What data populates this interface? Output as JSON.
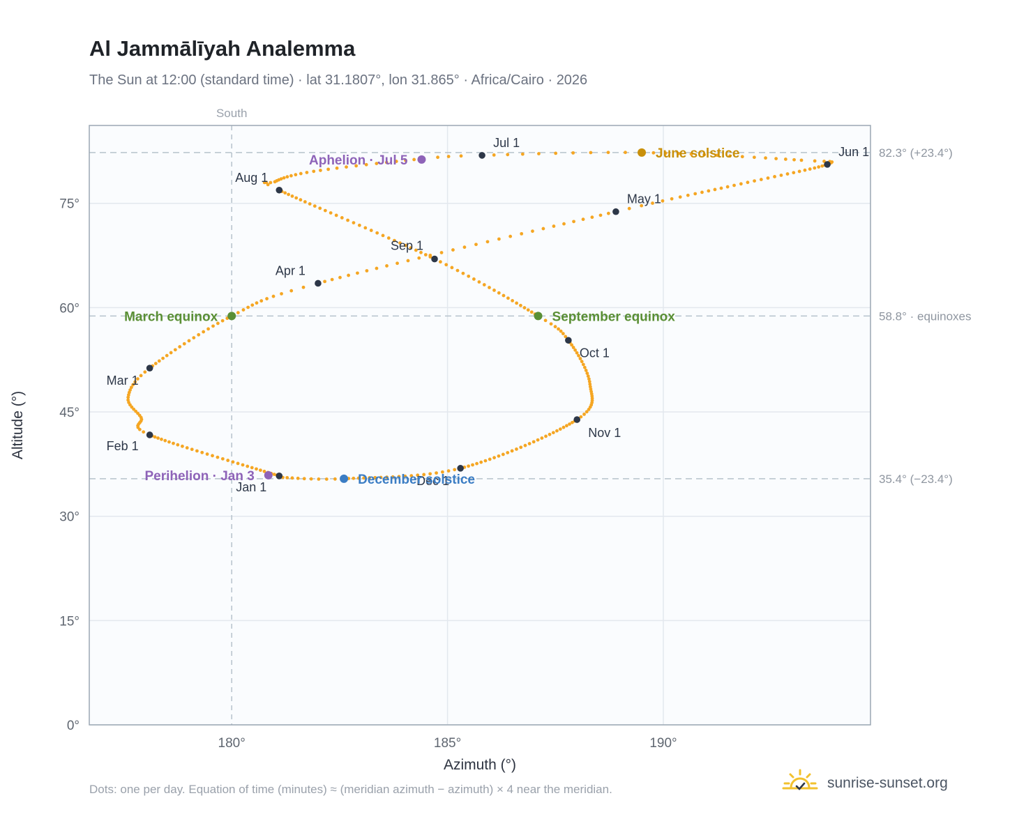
{
  "title": "Al Jammālīyah Analemma",
  "subtitle": "The Sun at 12:00 (standard time) · lat 31.1807°, lon 31.865° · Africa/Cairo · 2026",
  "footnote": "Dots: one per day. Equation of time (minutes) ≈ (meridian azimuth − azimuth) × 4 near the meridian.",
  "brand": {
    "name": "sunrise-sunset.org",
    "icon": "sun-logo-icon"
  },
  "colors": {
    "curve": "#f5a623",
    "month_marker": "#2d3748",
    "equinox": "#5a8f35",
    "june_solstice": "#c9900a",
    "december_solstice": "#3b7dc4",
    "perihelion": "#8e63b8",
    "aphelion": "#8e63b8",
    "plot_bg": "#fafcfe",
    "grid": "#e3e8ee",
    "frame": "#9ba7b4"
  },
  "chart_data": {
    "type": "scatter",
    "xlabel": "Azimuth (°)",
    "ylabel": "Altitude (°)",
    "xlim": [
      176.7,
      194.8
    ],
    "ylim": [
      0,
      86.2
    ],
    "x_ticks": [
      180,
      185,
      190
    ],
    "x_tick_labels": [
      "180°",
      "185°",
      "190°"
    ],
    "y_ticks": [
      0,
      15,
      30,
      45,
      60,
      75
    ],
    "y_tick_labels": [
      "0°",
      "15°",
      "30°",
      "45°",
      "60°",
      "75°"
    ],
    "grid": true,
    "meridian": {
      "azimuth": 180,
      "label": "South"
    },
    "reference_lines": [
      {
        "altitude": 82.3,
        "label": "82.3° (+23.4°)"
      },
      {
        "altitude": 58.8,
        "label": "58.8° · equinoxes"
      },
      {
        "altitude": 35.4,
        "label": "35.4° (−23.4°)"
      }
    ],
    "analemma_keypoints": [
      {
        "day": 1,
        "az": 181.1,
        "alt": 35.8
      },
      {
        "day": 32,
        "az": 178.1,
        "alt": 41.7
      },
      {
        "day": 41,
        "az": 177.9,
        "alt": 44.2
      },
      {
        "day": 50,
        "az": 177.6,
        "alt": 47.1
      },
      {
        "day": 60,
        "az": 178.1,
        "alt": 51.3
      },
      {
        "day": 79,
        "az": 180.0,
        "alt": 58.8
      },
      {
        "day": 91,
        "az": 182.0,
        "alt": 63.5
      },
      {
        "day": 121,
        "az": 188.9,
        "alt": 73.8
      },
      {
        "day": 136,
        "az": 191.8,
        "alt": 77.8
      },
      {
        "day": 152,
        "az": 193.8,
        "alt": 80.6
      },
      {
        "day": 158,
        "az": 193.2,
        "alt": 81.2
      },
      {
        "day": 172,
        "az": 189.5,
        "alt": 82.3
      },
      {
        "day": 182,
        "az": 185.8,
        "alt": 81.9
      },
      {
        "day": 186,
        "az": 184.4,
        "alt": 81.4
      },
      {
        "day": 198,
        "az": 181.9,
        "alt": 79.6
      },
      {
        "day": 208,
        "az": 181.0,
        "alt": 78.1
      },
      {
        "day": 213,
        "az": 181.1,
        "alt": 76.9
      },
      {
        "day": 244,
        "az": 184.7,
        "alt": 67.0
      },
      {
        "day": 266,
        "az": 187.1,
        "alt": 58.8
      },
      {
        "day": 274,
        "az": 187.8,
        "alt": 55.3
      },
      {
        "day": 290,
        "az": 188.3,
        "alt": 49.0
      },
      {
        "day": 305,
        "az": 188.0,
        "alt": 43.9
      },
      {
        "day": 335,
        "az": 185.3,
        "alt": 36.9
      },
      {
        "day": 355,
        "az": 182.6,
        "alt": 35.4
      },
      {
        "day": 365,
        "az": 181.1,
        "alt": 35.6
      }
    ],
    "month_markers": [
      {
        "label": "Jan 1",
        "az": 181.1,
        "alt": 35.8,
        "anchor": "end",
        "dx": -18,
        "dy": 22
      },
      {
        "label": "Feb 1",
        "az": 178.1,
        "alt": 41.7,
        "anchor": "end",
        "dx": -16,
        "dy": 22
      },
      {
        "label": "Mar 1",
        "az": 178.1,
        "alt": 51.3,
        "anchor": "end",
        "dx": -16,
        "dy": 24
      },
      {
        "label": "Apr 1",
        "az": 182.0,
        "alt": 63.5,
        "anchor": "end",
        "dx": -18,
        "dy": -12
      },
      {
        "label": "May 1",
        "az": 188.9,
        "alt": 73.8,
        "anchor": "start",
        "dx": 16,
        "dy": -12
      },
      {
        "label": "Jun 1",
        "az": 193.8,
        "alt": 80.6,
        "anchor": "start",
        "dx": 16,
        "dy": -12
      },
      {
        "label": "Jul 1",
        "az": 185.8,
        "alt": 81.9,
        "anchor": "start",
        "dx": 16,
        "dy": -12
      },
      {
        "label": "Aug 1",
        "az": 181.1,
        "alt": 76.9,
        "anchor": "end",
        "dx": -16,
        "dy": -12
      },
      {
        "label": "Sep 1",
        "az": 184.7,
        "alt": 67.0,
        "anchor": "end",
        "dx": -16,
        "dy": -13
      },
      {
        "label": "Oct 1",
        "az": 187.8,
        "alt": 55.3,
        "anchor": "start",
        "dx": 16,
        "dy": 24
      },
      {
        "label": "Nov 1",
        "az": 188.0,
        "alt": 43.9,
        "anchor": "start",
        "dx": 16,
        "dy": 25
      },
      {
        "label": "Dec 1",
        "az": 185.3,
        "alt": 36.9,
        "anchor": "end",
        "dx": -16,
        "dy": 24
      }
    ],
    "events": [
      {
        "label": "March equinox",
        "az": 180.0,
        "alt": 58.8,
        "color_key": "equinox",
        "anchor": "end",
        "dx": -20
      },
      {
        "label": "September equinox",
        "az": 187.1,
        "alt": 58.8,
        "color_key": "equinox",
        "anchor": "start",
        "dx": 20
      },
      {
        "label": "June solstice",
        "az": 189.5,
        "alt": 82.3,
        "color_key": "june_solstice",
        "anchor": "start",
        "dx": 20
      },
      {
        "label": "December solstice",
        "az": 182.6,
        "alt": 35.4,
        "color_key": "december_solstice",
        "anchor": "start",
        "dx": 20
      },
      {
        "label": "Perihelion · Jan 3",
        "az": 180.85,
        "alt": 35.9,
        "color_key": "perihelion",
        "anchor": "end",
        "dx": -20
      },
      {
        "label": "Aphelion · Jul 5",
        "az": 184.4,
        "alt": 81.3,
        "color_key": "aphelion",
        "anchor": "end",
        "dx": -20
      }
    ]
  }
}
